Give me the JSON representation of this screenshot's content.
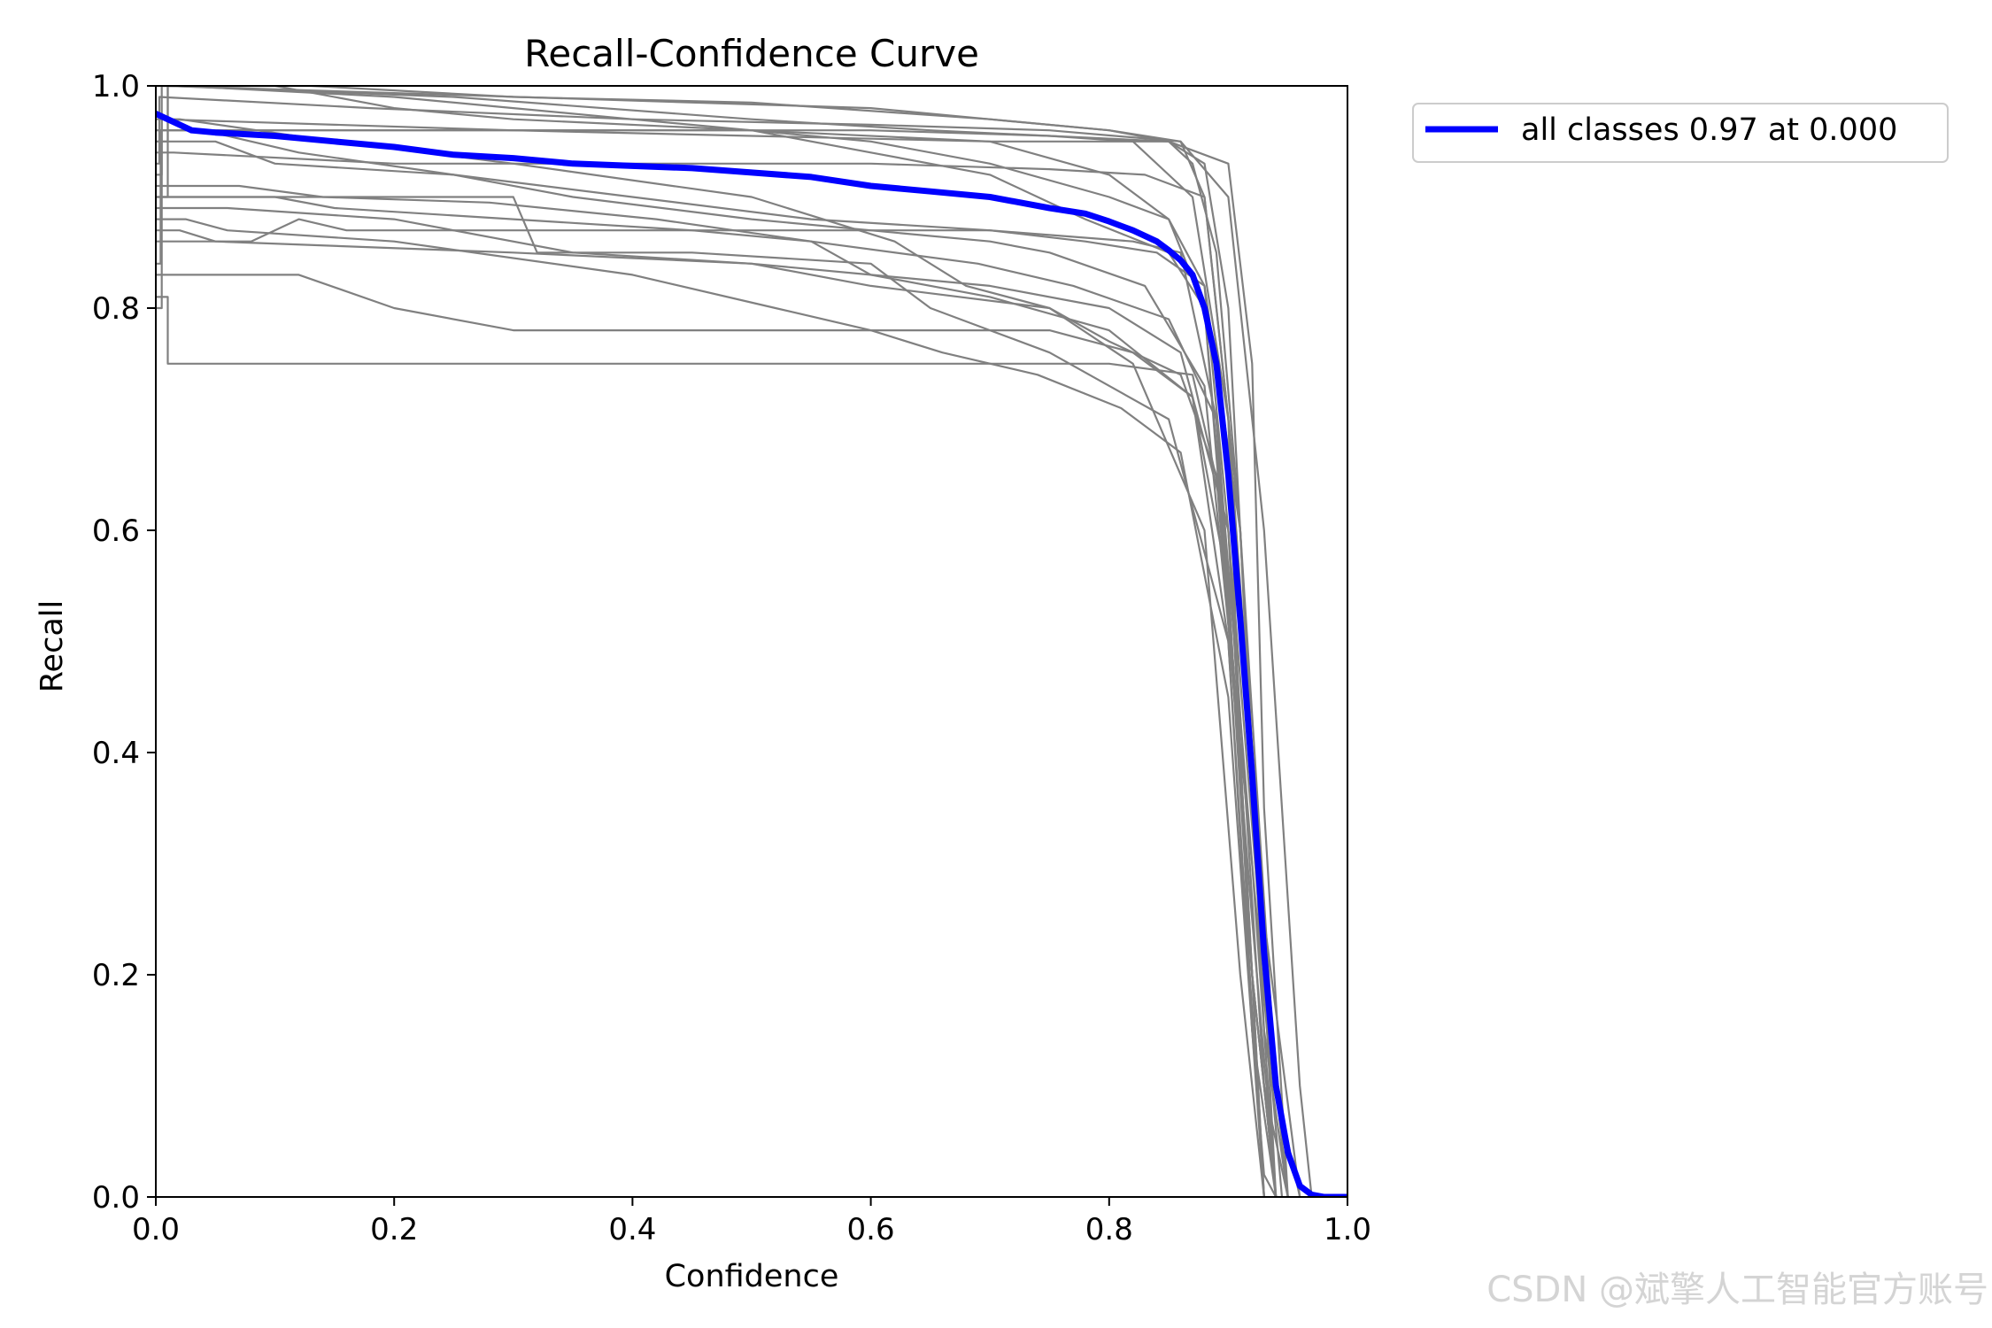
{
  "chart_data": {
    "type": "line",
    "title": "Recall-Confidence Curve",
    "xlabel": "Confidence",
    "ylabel": "Recall",
    "xlim": [
      0,
      1
    ],
    "ylim": [
      0,
      1
    ],
    "xticks": [
      "0.0",
      "0.2",
      "0.4",
      "0.6",
      "0.8",
      "1.0"
    ],
    "yticks": [
      "0.0",
      "0.2",
      "0.4",
      "0.6",
      "0.8",
      "1.0"
    ],
    "grid": false,
    "legend": {
      "placement": "outside-top-right",
      "entries": [
        "all classes 0.97 at 0.000"
      ]
    },
    "colors": {
      "class_lines": "#808080",
      "mean_line": "#0000ff"
    },
    "series_mean": {
      "name": "all classes 0.97 at 0.000",
      "x": [
        0.0,
        0.01,
        0.03,
        0.05,
        0.1,
        0.15,
        0.2,
        0.25,
        0.3,
        0.35,
        0.4,
        0.45,
        0.5,
        0.55,
        0.6,
        0.65,
        0.7,
        0.75,
        0.78,
        0.8,
        0.82,
        0.84,
        0.85,
        0.86,
        0.87,
        0.88,
        0.89,
        0.9,
        0.91,
        0.92,
        0.93,
        0.94,
        0.95,
        0.96,
        0.97,
        0.98,
        1.0
      ],
      "y": [
        0.975,
        0.97,
        0.96,
        0.958,
        0.955,
        0.95,
        0.945,
        0.938,
        0.935,
        0.93,
        0.928,
        0.926,
        0.922,
        0.918,
        0.91,
        0.905,
        0.9,
        0.89,
        0.885,
        0.878,
        0.87,
        0.86,
        0.852,
        0.843,
        0.83,
        0.8,
        0.75,
        0.65,
        0.52,
        0.38,
        0.22,
        0.1,
        0.04,
        0.01,
        0.002,
        0.0,
        0.0
      ]
    },
    "series_classes": [
      {
        "x": [
          0,
          0.01,
          0.01,
          0.6,
          0.7,
          0.8,
          0.86,
          0.88,
          0.9,
          0.91,
          0.92,
          0.93,
          0.94
        ],
        "y": [
          0.95,
          0.95,
          1.0,
          0.98,
          0.97,
          0.96,
          0.95,
          0.9,
          0.7,
          0.4,
          0.15,
          0.02,
          0.0
        ]
      },
      {
        "x": [
          0,
          0.02,
          0.2,
          0.3,
          0.4,
          0.5,
          0.6,
          0.7,
          0.8,
          0.85,
          0.88,
          0.9,
          0.92,
          0.93
        ],
        "y": [
          1.0,
          1.0,
          0.99,
          0.98,
          0.97,
          0.96,
          0.95,
          0.93,
          0.9,
          0.88,
          0.82,
          0.6,
          0.2,
          0.0
        ]
      },
      {
        "x": [
          0,
          0.005,
          0.005,
          0.3,
          0.5,
          0.7,
          0.85,
          0.87,
          0.89,
          0.91,
          0.93,
          0.95
        ],
        "y": [
          0.92,
          0.92,
          0.97,
          0.96,
          0.955,
          0.95,
          0.95,
          0.93,
          0.85,
          0.6,
          0.15,
          0.0
        ]
      },
      {
        "x": [
          0,
          0.01,
          0.12,
          0.5,
          0.7,
          0.8,
          0.85,
          0.88,
          0.9,
          0.92,
          0.94
        ],
        "y": [
          0.96,
          0.96,
          0.96,
          0.96,
          0.95,
          0.92,
          0.88,
          0.8,
          0.55,
          0.2,
          0.0
        ]
      },
      {
        "x": [
          0,
          0.08,
          0.12,
          0.16,
          0.3,
          0.5,
          0.7,
          0.82,
          0.86,
          0.89,
          0.92,
          0.94
        ],
        "y": [
          0.86,
          0.86,
          0.88,
          0.87,
          0.87,
          0.87,
          0.87,
          0.86,
          0.85,
          0.7,
          0.2,
          0.0
        ]
      },
      {
        "x": [
          0,
          0.01,
          0.01,
          0.15,
          0.3,
          0.5,
          0.7,
          0.8,
          0.87,
          0.9,
          0.93,
          0.95
        ],
        "y": [
          0.81,
          0.81,
          0.75,
          0.75,
          0.75,
          0.75,
          0.75,
          0.75,
          0.74,
          0.6,
          0.2,
          0.0
        ]
      },
      {
        "x": [
          0,
          0.02,
          0.05,
          0.3,
          0.5,
          0.6,
          0.75,
          0.82,
          0.88,
          0.91,
          0.93
        ],
        "y": [
          0.87,
          0.87,
          0.86,
          0.85,
          0.84,
          0.82,
          0.8,
          0.75,
          0.6,
          0.2,
          0.0
        ]
      },
      {
        "x": [
          0,
          0.0,
          0.09,
          0.12,
          0.2,
          0.3,
          0.5,
          0.65,
          0.75,
          0.82,
          0.87,
          0.9,
          0.92,
          0.94
        ],
        "y": [
          0.83,
          0.83,
          0.83,
          0.83,
          0.8,
          0.78,
          0.78,
          0.78,
          0.78,
          0.76,
          0.72,
          0.5,
          0.15,
          0.0
        ]
      },
      {
        "x": [
          0,
          0.03,
          0.1,
          0.2,
          0.3,
          0.5,
          0.6,
          0.7,
          0.78,
          0.85,
          0.88,
          0.91,
          0.93
        ],
        "y": [
          1.0,
          1.0,
          1.0,
          0.98,
          0.97,
          0.96,
          0.94,
          0.92,
          0.88,
          0.85,
          0.8,
          0.4,
          0.0
        ]
      },
      {
        "x": [
          0,
          0.1,
          0.15,
          0.3,
          0.45,
          0.55,
          0.6,
          0.7,
          0.8,
          0.86,
          0.9,
          0.93,
          0.95
        ],
        "y": [
          0.9,
          0.9,
          0.89,
          0.88,
          0.87,
          0.86,
          0.83,
          0.82,
          0.8,
          0.76,
          0.6,
          0.1,
          0.0
        ]
      },
      {
        "x": [
          0,
          0.01,
          0.01,
          0.25,
          0.5,
          0.65,
          0.75,
          0.82,
          0.87,
          0.9,
          0.93,
          0.96
        ],
        "y": [
          0.9,
          0.9,
          1.0,
          0.99,
          0.97,
          0.96,
          0.955,
          0.95,
          0.9,
          0.7,
          0.25,
          0.0
        ]
      },
      {
        "x": [
          0,
          0.05,
          0.1,
          0.25,
          0.35,
          0.5,
          0.6,
          0.7,
          0.75,
          0.83,
          0.88,
          0.92,
          0.94
        ],
        "y": [
          0.95,
          0.95,
          0.93,
          0.92,
          0.9,
          0.88,
          0.87,
          0.86,
          0.85,
          0.82,
          0.73,
          0.3,
          0.0
        ]
      },
      {
        "x": [
          0,
          0.03,
          0.2,
          0.3,
          0.32,
          0.45,
          0.6,
          0.65,
          0.7,
          0.75,
          0.85,
          0.9,
          0.93
        ],
        "y": [
          0.9,
          0.9,
          0.9,
          0.9,
          0.85,
          0.85,
          0.84,
          0.8,
          0.78,
          0.76,
          0.7,
          0.5,
          0.0
        ]
      },
      {
        "x": [
          0,
          0.015,
          0.2,
          0.4,
          0.6,
          0.75,
          0.83,
          0.88,
          0.91,
          0.94,
          0.96
        ],
        "y": [
          0.94,
          0.94,
          0.93,
          0.93,
          0.93,
          0.925,
          0.92,
          0.9,
          0.6,
          0.1,
          0.0
        ]
      },
      {
        "x": [
          0,
          0.06,
          0.2,
          0.35,
          0.5,
          0.6,
          0.7,
          0.8,
          0.87,
          0.9,
          0.92,
          0.94
        ],
        "y": [
          0.89,
          0.89,
          0.88,
          0.85,
          0.84,
          0.83,
          0.81,
          0.78,
          0.72,
          0.55,
          0.2,
          0.0
        ]
      },
      {
        "x": [
          0,
          0.005,
          0.005,
          0.13,
          0.3,
          0.5,
          0.7,
          0.8,
          0.85,
          0.88,
          0.9,
          0.92,
          0.94
        ],
        "y": [
          0.8,
          0.8,
          1.0,
          1.0,
          0.99,
          0.985,
          0.97,
          0.96,
          0.95,
          0.93,
          0.8,
          0.4,
          0.0
        ]
      },
      {
        "x": [
          0,
          0.02,
          0.15,
          0.3,
          0.5,
          0.62,
          0.68,
          0.75,
          0.8,
          0.86,
          0.89,
          0.92,
          0.94
        ],
        "y": [
          0.97,
          0.97,
          0.95,
          0.93,
          0.9,
          0.86,
          0.82,
          0.8,
          0.77,
          0.74,
          0.65,
          0.25,
          0.0
        ]
      },
      {
        "x": [
          0,
          0.004,
          0.004,
          0.3,
          0.6,
          0.75,
          0.85,
          0.9,
          0.92,
          0.93,
          0.95
        ],
        "y": [
          0.84,
          0.84,
          0.96,
          0.96,
          0.96,
          0.955,
          0.95,
          0.93,
          0.75,
          0.35,
          0.0
        ]
      },
      {
        "x": [
          0,
          0.04,
          0.12,
          0.25,
          0.4,
          0.55,
          0.7,
          0.78,
          0.84,
          0.88,
          0.91,
          0.93,
          0.95
        ],
        "y": [
          0.96,
          0.96,
          0.94,
          0.92,
          0.9,
          0.88,
          0.87,
          0.86,
          0.85,
          0.82,
          0.6,
          0.2,
          0.0
        ]
      },
      {
        "x": [
          0,
          0.025,
          0.06,
          0.2,
          0.4,
          0.52,
          0.6,
          0.66,
          0.74,
          0.81,
          0.86,
          0.9,
          0.93
        ],
        "y": [
          0.88,
          0.88,
          0.87,
          0.86,
          0.83,
          0.8,
          0.78,
          0.76,
          0.74,
          0.71,
          0.67,
          0.45,
          0.0
        ]
      },
      {
        "x": [
          0,
          0.003,
          0.003,
          0.18,
          0.4,
          0.6,
          0.75,
          0.86,
          0.9,
          0.93,
          0.96,
          0.97
        ],
        "y": [
          0.93,
          0.93,
          0.99,
          0.98,
          0.97,
          0.965,
          0.96,
          0.95,
          0.9,
          0.6,
          0.1,
          0.0
        ]
      },
      {
        "x": [
          0,
          0.07,
          0.14,
          0.28,
          0.42,
          0.55,
          0.69,
          0.77,
          0.85,
          0.89,
          0.92,
          0.945
        ],
        "y": [
          0.91,
          0.91,
          0.9,
          0.895,
          0.88,
          0.86,
          0.84,
          0.82,
          0.79,
          0.7,
          0.3,
          0.0
        ]
      }
    ]
  },
  "watermark": "CSDN @斌擎人工智能官方账号"
}
